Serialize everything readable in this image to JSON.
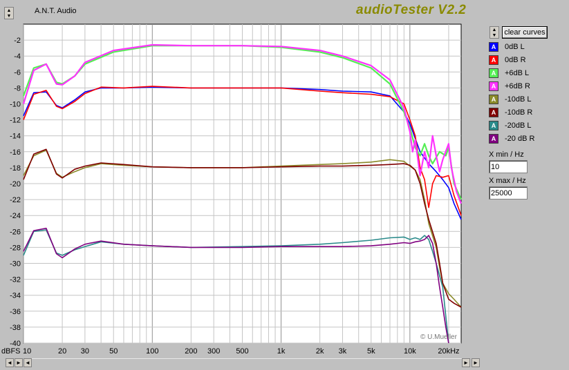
{
  "app_name": "A.N.T. Audio",
  "app_title": "audioTester V2.2",
  "copyright": "© U.Mueller",
  "clear_button": "clear curves",
  "y_unit_label": "dBFS",
  "xmin_label": "X min / Hz",
  "xmin_value": "10",
  "xmax_label": "X max / Hz",
  "xmax_value": "25000",
  "legend": [
    {
      "label": "0dB L",
      "color": "#0000ff"
    },
    {
      "label": "0dB R",
      "color": "#ff0000"
    },
    {
      "label": "+6dB L",
      "color": "#55ee55"
    },
    {
      "label": "+6dB R",
      "color": "#ff33ff"
    },
    {
      "label": "-10dB L",
      "color": "#8a8a2a"
    },
    {
      "label": "-10dB R",
      "color": "#800000"
    },
    {
      "label": "-20dB L",
      "color": "#2a8a8a"
    },
    {
      "label": "-20 dB R",
      "color": "#800080"
    }
  ],
  "chart_data": {
    "type": "line",
    "x_scale": "log",
    "xlim": [
      10,
      25000
    ],
    "ylim": [
      -40,
      0
    ],
    "grid": true,
    "legend_position": "right",
    "x_tick_labels": [
      {
        "v": 10,
        "label": "10"
      },
      {
        "v": 20,
        "label": "20"
      },
      {
        "v": 30,
        "label": "30"
      },
      {
        "v": 50,
        "label": "50"
      },
      {
        "v": 100,
        "label": "100"
      },
      {
        "v": 200,
        "label": "200"
      },
      {
        "v": 300,
        "label": "300"
      },
      {
        "v": 500,
        "label": "500"
      },
      {
        "v": 1000,
        "label": "1k"
      },
      {
        "v": 2000,
        "label": "2k"
      },
      {
        "v": 3000,
        "label": "3k"
      },
      {
        "v": 5000,
        "label": "5k"
      },
      {
        "v": 10000,
        "label": "10k"
      },
      {
        "v": 20000,
        "label": "20kHz"
      }
    ],
    "y_ticks": [
      -2,
      -4,
      -6,
      -8,
      -10,
      -12,
      -14,
      -16,
      -18,
      -20,
      -22,
      -24,
      -26,
      -28,
      -30,
      -32,
      -34,
      -36,
      -38,
      -40
    ],
    "series": [
      {
        "name": "0dB L",
        "color": "#0000ff",
        "points": [
          [
            10,
            -11.5
          ],
          [
            12,
            -8.6
          ],
          [
            15,
            -8.5
          ],
          [
            18,
            -10.2
          ],
          [
            20,
            -10.5
          ],
          [
            25,
            -9.5
          ],
          [
            30,
            -8.5
          ],
          [
            40,
            -8.0
          ],
          [
            60,
            -8.0
          ],
          [
            100,
            -7.9
          ],
          [
            200,
            -8.0
          ],
          [
            500,
            -8.0
          ],
          [
            1000,
            -8.0
          ],
          [
            2000,
            -8.2
          ],
          [
            3000,
            -8.4
          ],
          [
            5000,
            -8.5
          ],
          [
            7000,
            -9.0
          ],
          [
            9000,
            -11.0
          ],
          [
            10000,
            -12.5
          ],
          [
            12000,
            -16.0
          ],
          [
            14000,
            -17.5
          ],
          [
            16000,
            -18.5
          ],
          [
            18000,
            -19.5
          ],
          [
            20000,
            -20.5
          ],
          [
            22000,
            -22.5
          ],
          [
            25000,
            -24.5
          ]
        ]
      },
      {
        "name": "0dB R",
        "color": "#ff0000",
        "points": [
          [
            10,
            -12.0
          ],
          [
            12,
            -8.8
          ],
          [
            15,
            -8.3
          ],
          [
            18,
            -10.3
          ],
          [
            20,
            -10.6
          ],
          [
            25,
            -9.7
          ],
          [
            30,
            -8.7
          ],
          [
            40,
            -7.9
          ],
          [
            60,
            -8.0
          ],
          [
            100,
            -7.8
          ],
          [
            200,
            -8.0
          ],
          [
            500,
            -8.0
          ],
          [
            1000,
            -8.0
          ],
          [
            2000,
            -8.4
          ],
          [
            3000,
            -8.6
          ],
          [
            5000,
            -8.8
          ],
          [
            7000,
            -9.1
          ],
          [
            9000,
            -10.0
          ],
          [
            10000,
            -12.0
          ],
          [
            11000,
            -14.0
          ],
          [
            12000,
            -18.0
          ],
          [
            13000,
            -19.5
          ],
          [
            14000,
            -23.0
          ],
          [
            15000,
            -20.0
          ],
          [
            16000,
            -19.0
          ],
          [
            18000,
            -19.2
          ],
          [
            20000,
            -19.0
          ],
          [
            22000,
            -21.5
          ],
          [
            25000,
            -24.0
          ]
        ]
      },
      {
        "name": "+6dB L",
        "color": "#55ee55",
        "points": [
          [
            10,
            -9.0
          ],
          [
            12,
            -5.5
          ],
          [
            15,
            -5.0
          ],
          [
            18,
            -7.3
          ],
          [
            20,
            -7.5
          ],
          [
            25,
            -6.5
          ],
          [
            30,
            -5.0
          ],
          [
            50,
            -3.5
          ],
          [
            100,
            -2.7
          ],
          [
            200,
            -2.7
          ],
          [
            500,
            -2.7
          ],
          [
            1000,
            -2.9
          ],
          [
            2000,
            -3.5
          ],
          [
            3000,
            -4.2
          ],
          [
            5000,
            -5.5
          ],
          [
            7000,
            -7.5
          ],
          [
            9000,
            -11.0
          ],
          [
            10000,
            -13.0
          ],
          [
            11000,
            -15.5
          ],
          [
            12000,
            -16.5
          ],
          [
            13000,
            -15.0
          ],
          [
            14000,
            -16.5
          ],
          [
            15000,
            -17.5
          ],
          [
            17000,
            -16.0
          ],
          [
            19000,
            -16.5
          ],
          [
            20000,
            -15.5
          ],
          [
            22000,
            -20.0
          ],
          [
            25000,
            -22.0
          ]
        ]
      },
      {
        "name": "+6dB R",
        "color": "#ff33ff",
        "points": [
          [
            10,
            -10.0
          ],
          [
            12,
            -5.8
          ],
          [
            15,
            -5.0
          ],
          [
            18,
            -7.5
          ],
          [
            20,
            -7.6
          ],
          [
            25,
            -6.5
          ],
          [
            30,
            -4.8
          ],
          [
            50,
            -3.3
          ],
          [
            100,
            -2.6
          ],
          [
            200,
            -2.7
          ],
          [
            500,
            -2.7
          ],
          [
            1000,
            -2.8
          ],
          [
            2000,
            -3.3
          ],
          [
            3000,
            -4.0
          ],
          [
            5000,
            -5.2
          ],
          [
            7000,
            -7.0
          ],
          [
            9000,
            -10.5
          ],
          [
            10000,
            -13.5
          ],
          [
            10500,
            -16.0
          ],
          [
            11000,
            -14.5
          ],
          [
            12000,
            -19.0
          ],
          [
            13000,
            -16.0
          ],
          [
            14000,
            -18.0
          ],
          [
            15000,
            -14.0
          ],
          [
            16000,
            -16.5
          ],
          [
            17000,
            -18.5
          ],
          [
            18000,
            -17.0
          ],
          [
            20000,
            -15.0
          ],
          [
            21000,
            -18.0
          ],
          [
            23000,
            -21.0
          ],
          [
            25000,
            -22.5
          ]
        ]
      },
      {
        "name": "-10dB L",
        "color": "#8a8a2a",
        "points": [
          [
            10,
            -19.0
          ],
          [
            12,
            -16.5
          ],
          [
            15,
            -15.8
          ],
          [
            18,
            -18.7
          ],
          [
            20,
            -19.2
          ],
          [
            25,
            -18.5
          ],
          [
            30,
            -18.0
          ],
          [
            40,
            -17.5
          ],
          [
            60,
            -17.7
          ],
          [
            100,
            -17.9
          ],
          [
            200,
            -18.0
          ],
          [
            500,
            -18.0
          ],
          [
            1000,
            -17.8
          ],
          [
            2000,
            -17.6
          ],
          [
            3000,
            -17.5
          ],
          [
            5000,
            -17.3
          ],
          [
            7000,
            -17.0
          ],
          [
            9000,
            -17.2
          ],
          [
            10000,
            -17.8
          ],
          [
            11000,
            -18.3
          ],
          [
            12000,
            -19.5
          ],
          [
            13000,
            -22.0
          ],
          [
            14000,
            -25.0
          ],
          [
            16000,
            -28.0
          ],
          [
            17000,
            -30.5
          ],
          [
            18000,
            -32.5
          ],
          [
            20000,
            -33.8
          ],
          [
            22000,
            -34.5
          ],
          [
            25000,
            -35.5
          ]
        ]
      },
      {
        "name": "-10dB R",
        "color": "#800000",
        "points": [
          [
            10,
            -19.5
          ],
          [
            12,
            -16.3
          ],
          [
            15,
            -15.7
          ],
          [
            18,
            -18.8
          ],
          [
            20,
            -19.3
          ],
          [
            25,
            -18.2
          ],
          [
            30,
            -17.8
          ],
          [
            40,
            -17.4
          ],
          [
            60,
            -17.6
          ],
          [
            100,
            -17.9
          ],
          [
            200,
            -18.0
          ],
          [
            500,
            -18.0
          ],
          [
            1000,
            -17.9
          ],
          [
            2000,
            -17.8
          ],
          [
            3000,
            -17.8
          ],
          [
            5000,
            -17.7
          ],
          [
            7000,
            -17.6
          ],
          [
            9000,
            -17.5
          ],
          [
            10000,
            -17.7
          ],
          [
            11000,
            -18.3
          ],
          [
            12000,
            -20.0
          ],
          [
            13000,
            -22.5
          ],
          [
            14000,
            -24.5
          ],
          [
            16000,
            -27.5
          ],
          [
            17000,
            -30.0
          ],
          [
            18000,
            -32.5
          ],
          [
            20000,
            -34.5
          ],
          [
            22000,
            -35.0
          ],
          [
            25000,
            -35.5
          ]
        ]
      },
      {
        "name": "-20dB L",
        "color": "#2a8a8a",
        "points": [
          [
            10,
            -29.0
          ],
          [
            12,
            -26.0
          ],
          [
            15,
            -25.8
          ],
          [
            18,
            -28.7
          ],
          [
            20,
            -29.0
          ],
          [
            25,
            -28.3
          ],
          [
            30,
            -27.9
          ],
          [
            40,
            -27.3
          ],
          [
            60,
            -27.6
          ],
          [
            100,
            -27.8
          ],
          [
            200,
            -28.0
          ],
          [
            500,
            -27.9
          ],
          [
            1000,
            -27.8
          ],
          [
            2000,
            -27.6
          ],
          [
            3000,
            -27.4
          ],
          [
            5000,
            -27.1
          ],
          [
            7000,
            -26.8
          ],
          [
            9000,
            -26.7
          ],
          [
            10000,
            -27.0
          ],
          [
            11000,
            -26.8
          ],
          [
            12000,
            -27.0
          ],
          [
            13000,
            -26.5
          ],
          [
            14000,
            -27.0
          ],
          [
            15000,
            -28.5
          ],
          [
            16000,
            -30.0
          ],
          [
            18000,
            -33.0
          ],
          [
            20000,
            -40.0
          ]
        ]
      },
      {
        "name": "-20 dB R",
        "color": "#800080",
        "points": [
          [
            10,
            -28.5
          ],
          [
            12,
            -25.9
          ],
          [
            15,
            -25.6
          ],
          [
            18,
            -28.8
          ],
          [
            20,
            -29.3
          ],
          [
            25,
            -28.2
          ],
          [
            30,
            -27.6
          ],
          [
            40,
            -27.2
          ],
          [
            60,
            -27.6
          ],
          [
            100,
            -27.8
          ],
          [
            200,
            -28.0
          ],
          [
            500,
            -28.0
          ],
          [
            1000,
            -27.9
          ],
          [
            2000,
            -27.9
          ],
          [
            3000,
            -27.9
          ],
          [
            5000,
            -27.8
          ],
          [
            7000,
            -27.6
          ],
          [
            9000,
            -27.4
          ],
          [
            10000,
            -27.5
          ],
          [
            11000,
            -27.3
          ],
          [
            12000,
            -27.2
          ],
          [
            13000,
            -27.0
          ],
          [
            14000,
            -26.5
          ],
          [
            15000,
            -27.5
          ],
          [
            16000,
            -30.0
          ],
          [
            17000,
            -33.0
          ],
          [
            18000,
            -35.5
          ],
          [
            19000,
            -38.0
          ],
          [
            20000,
            -40.0
          ]
        ]
      }
    ]
  }
}
